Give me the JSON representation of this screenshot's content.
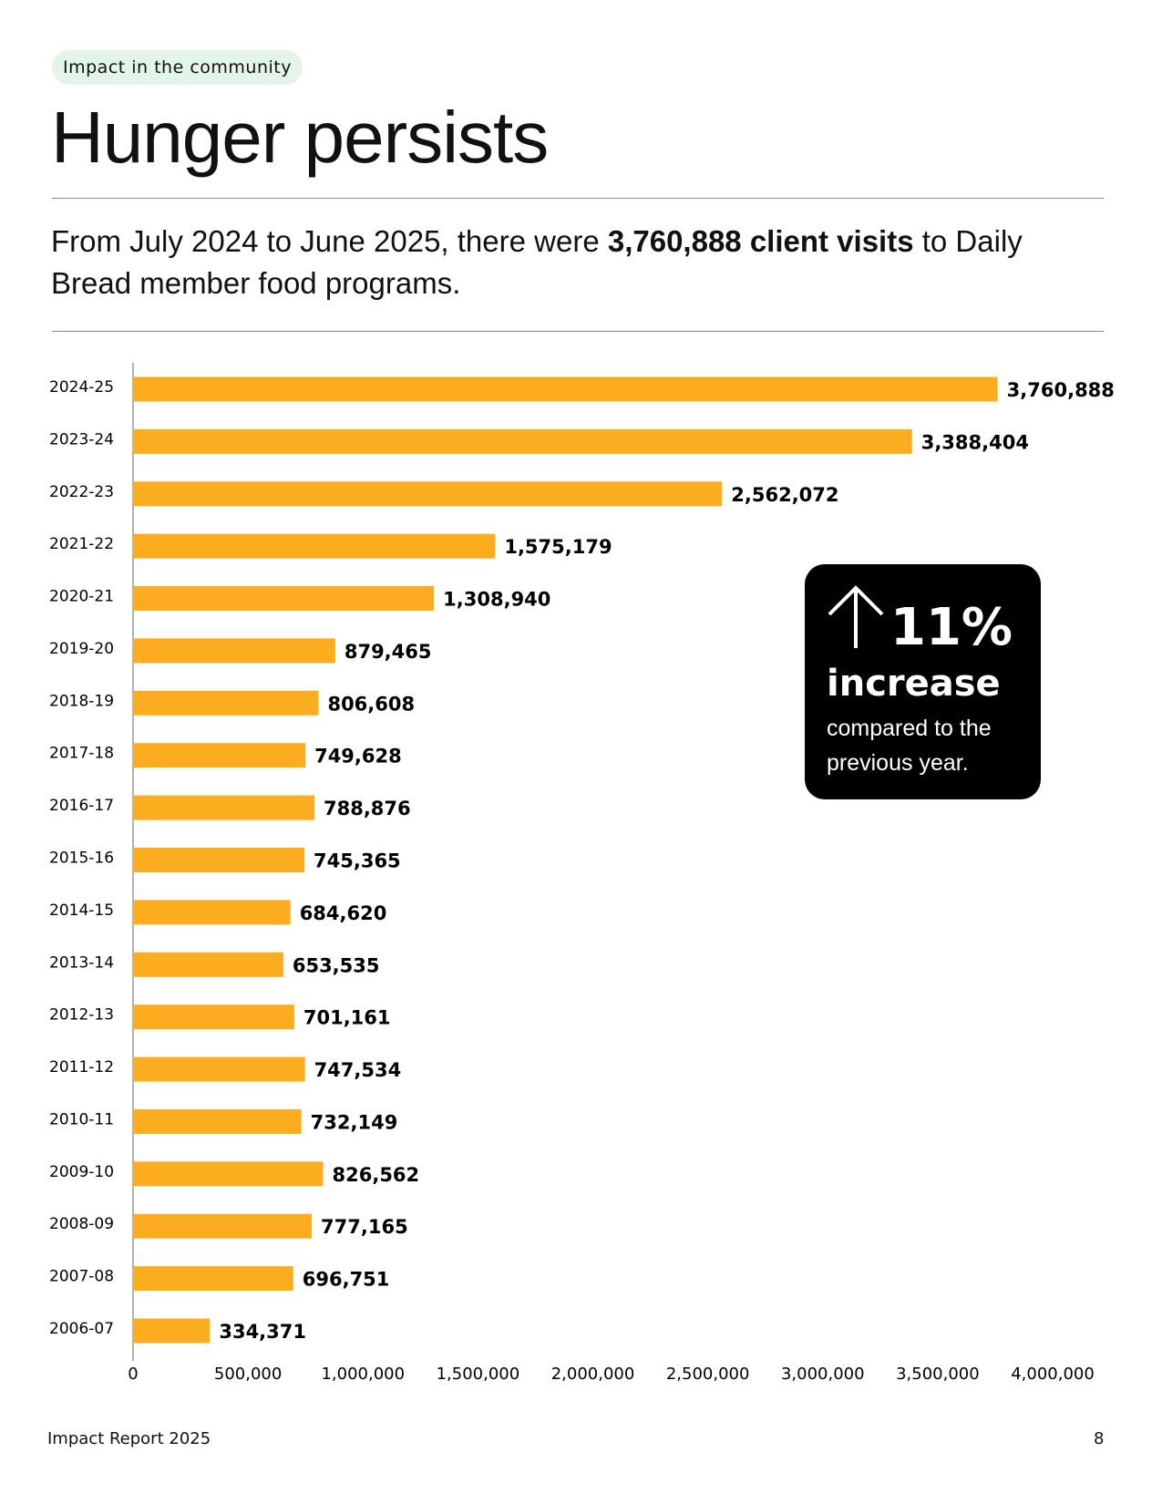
{
  "header": {
    "tag": "Impact in the community",
    "title": "Hunger persists",
    "subtitle": [
      "From July 2024 to June 2025, there were ",
      "3,760,888 client visits",
      " to Daily Bread member food programs."
    ]
  },
  "callout": {
    "figure": "11%",
    "label": "increase",
    "text": "compared to the previous year."
  },
  "footer": {
    "left": "Impact Report 2025",
    "page": "8"
  },
  "chart_data": {
    "type": "hbar",
    "categories": [
      "2024-25",
      "2023-24",
      "2022-23",
      "2021-22",
      "2020-21",
      "2019-20",
      "2018-19",
      "2017-18",
      "2016-17",
      "2015-16",
      "2014-15",
      "2013-14",
      "2012-13",
      "2011-12",
      "2010-11",
      "2009-10",
      "2008-09",
      "2007-08",
      "2006-07"
    ],
    "values": [
      3760888,
      3388404,
      2562072,
      1575179,
      1308940,
      879465,
      806608,
      749628,
      788876,
      745365,
      684620,
      653535,
      701161,
      747534,
      732149,
      826562,
      777165,
      696751,
      334371
    ],
    "value_labels": [
      "3,760,888",
      "3,388,404",
      "2,562,072",
      "1,575,179",
      "1,308,940",
      "879,465",
      "806,608",
      "749,628",
      "788,876",
      "745,365",
      "684,620",
      "653,535",
      "701,161",
      "747,534",
      "732,149",
      "826,562",
      "777,165",
      "696,751",
      "334,371"
    ],
    "color": "#fbad1f",
    "xlim": [
      0,
      4000000
    ],
    "xticks": [
      0,
      {
        "value": 500000,
        "label": "500,000"
      },
      {
        "value": 1000000,
        "label": "1,000,000"
      },
      {
        "value": 1500000,
        "label": "1,500,000"
      },
      {
        "value": 2000000,
        "label": "2,000,000"
      },
      {
        "value": 2500000,
        "label": "2,500,000"
      },
      {
        "value": 3000000,
        "label": "3,000,000"
      },
      {
        "value": 3500000,
        "label": "3,500,000"
      },
      {
        "value": 4000000,
        "label": "4,000,000"
      }
    ],
    "grid": false
  }
}
